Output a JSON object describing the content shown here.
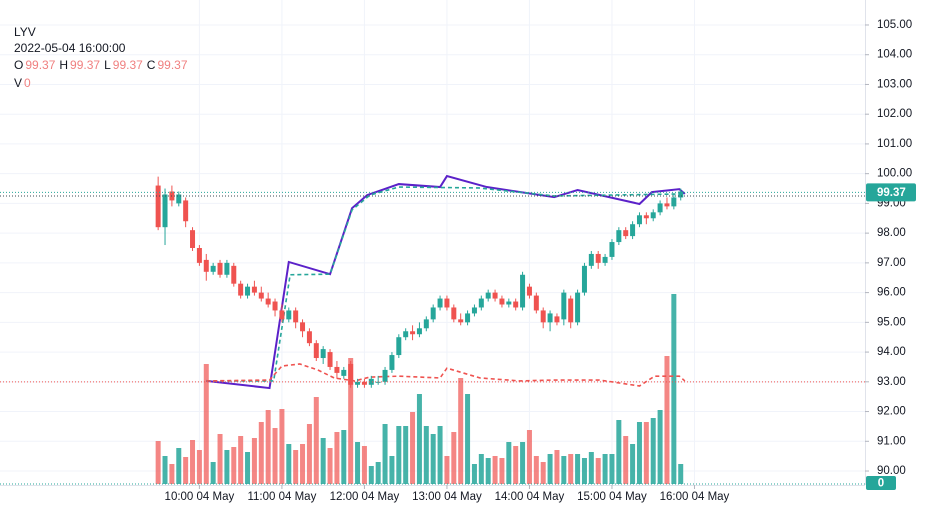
{
  "chart_data": {
    "type": "candlestick",
    "legend": {
      "symbol": "LYV",
      "datetime": "2022-05-04 16:00:00",
      "ohlc": [
        {
          "label": "O",
          "value": 99.37
        },
        {
          "label": "H",
          "value": 99.37
        },
        {
          "label": "L",
          "value": 99.37
        },
        {
          "label": "C",
          "value": 99.37
        }
      ],
      "volume": {
        "label": "V",
        "value": 0
      }
    },
    "xlim": [
      455,
      1084
    ],
    "xticks": [
      {
        "value": 600,
        "label": "10:00 04 May"
      },
      {
        "value": 660,
        "label": "11:00 04 May"
      },
      {
        "value": 720,
        "label": "12:00 04 May"
      },
      {
        "value": 780,
        "label": "13:00 04 May"
      },
      {
        "value": 840,
        "label": "14:00 04 May"
      },
      {
        "value": 900,
        "label": "15:00 04 May"
      },
      {
        "value": 960,
        "label": "16:00 04 May"
      }
    ],
    "ylim": [
      89.53,
      105.84
    ],
    "yticks": [
      {
        "value": 90,
        "label": "90.00"
      },
      {
        "value": 91,
        "label": "91.00"
      },
      {
        "value": 92,
        "label": "92.00"
      },
      {
        "value": 93,
        "label": "93.00"
      },
      {
        "value": 94,
        "label": "94.00"
      },
      {
        "value": 95,
        "label": "95.00"
      },
      {
        "value": 96,
        "label": "96.00"
      },
      {
        "value": 97,
        "label": "97.00"
      },
      {
        "value": 98,
        "label": "98.00"
      },
      {
        "value": 99,
        "label": "99.00"
      },
      {
        "value": 100,
        "label": "100.00"
      },
      {
        "value": 101,
        "label": "101.00"
      },
      {
        "value": 102,
        "label": "102.00"
      },
      {
        "value": 103,
        "label": "103.00"
      },
      {
        "value": 104,
        "label": "104.00"
      },
      {
        "value": 105,
        "label": "105.00"
      }
    ],
    "vlim": [
      0,
      200
    ],
    "grid": true,
    "up_color": "#26a69a",
    "down_color": "#ef5350",
    "last_price": 99.37,
    "last_volume": 0,
    "price_lines": [
      {
        "value": 99.37,
        "color": "#26a69a"
      },
      {
        "value": 99.25,
        "color": "#37474f"
      },
      {
        "value": 93.0,
        "color": "#ef5350"
      }
    ],
    "x": [
      570,
      575,
      580,
      585,
      590,
      595,
      600,
      605,
      610,
      615,
      620,
      625,
      630,
      635,
      640,
      645,
      650,
      655,
      660,
      665,
      670,
      675,
      680,
      685,
      690,
      695,
      700,
      705,
      710,
      715,
      720,
      725,
      730,
      735,
      740,
      745,
      750,
      755,
      760,
      765,
      770,
      775,
      780,
      785,
      790,
      795,
      800,
      805,
      810,
      815,
      820,
      825,
      830,
      835,
      840,
      845,
      850,
      855,
      860,
      865,
      870,
      875,
      880,
      885,
      890,
      895,
      900,
      905,
      910,
      915,
      920,
      925,
      930,
      935,
      940,
      945,
      950
    ],
    "open": [
      99.6,
      98.2,
      99.4,
      99.0,
      99.1,
      98.1,
      97.5,
      97.1,
      96.7,
      97.0,
      96.6,
      96.9,
      96.3,
      95.9,
      96.2,
      96.0,
      95.8,
      95.7,
      95.4,
      95.1,
      95.4,
      95.0,
      94.7,
      94.3,
      93.8,
      94.0,
      93.5,
      93.2,
      93.6,
      92.9,
      93.0,
      92.9,
      93.0,
      93.0,
      93.4,
      93.9,
      94.5,
      94.7,
      94.6,
      94.8,
      95.1,
      95.5,
      95.8,
      95.5,
      95.1,
      95.0,
      95.3,
      95.5,
      95.8,
      96.0,
      95.8,
      95.6,
      95.7,
      95.5,
      96.2,
      95.9,
      95.4,
      95.0,
      95.2,
      95.1,
      95.8,
      95.0,
      96.0,
      96.9,
      97.3,
      97.0,
      97.2,
      97.7,
      98.1,
      97.9,
      98.3,
      98.6,
      98.5,
      98.7,
      99.0,
      98.9,
      99.2
    ],
    "high": [
      99.9,
      99.5,
      99.6,
      99.4,
      99.2,
      98.2,
      97.6,
      97.3,
      97.0,
      97.1,
      97.1,
      97.0,
      96.4,
      96.3,
      96.4,
      96.2,
      96.0,
      95.8,
      95.6,
      95.5,
      95.5,
      95.1,
      94.8,
      94.4,
      94.2,
      94.1,
      93.7,
      93.5,
      93.7,
      93.1,
      93.1,
      93.2,
      93.2,
      93.5,
      94.0,
      94.6,
      94.8,
      94.9,
      95.0,
      95.2,
      95.6,
      95.9,
      95.9,
      95.6,
      95.3,
      95.4,
      95.6,
      95.9,
      96.1,
      96.1,
      95.9,
      95.8,
      95.8,
      96.7,
      96.3,
      96.0,
      95.5,
      95.4,
      95.3,
      96.1,
      95.9,
      96.1,
      97.0,
      97.4,
      97.4,
      97.3,
      97.8,
      98.2,
      98.2,
      98.4,
      98.7,
      98.7,
      98.8,
      99.1,
      99.2,
      99.3,
      99.5
    ],
    "low": [
      98.1,
      97.6,
      98.9,
      98.9,
      98.2,
      97.4,
      96.9,
      96.4,
      96.6,
      96.5,
      96.5,
      96.2,
      95.8,
      95.8,
      95.9,
      95.7,
      95.5,
      95.2,
      95.0,
      95.0,
      94.8,
      94.5,
      94.2,
      93.7,
      93.6,
      93.4,
      93.1,
      93.1,
      92.8,
      92.8,
      92.8,
      92.8,
      92.9,
      92.9,
      93.3,
      93.8,
      94.4,
      94.4,
      94.5,
      94.7,
      95.0,
      95.4,
      95.4,
      95.0,
      94.9,
      94.9,
      95.2,
      95.4,
      95.7,
      95.7,
      95.5,
      95.5,
      95.4,
      95.4,
      95.8,
      95.3,
      94.8,
      94.7,
      94.9,
      94.9,
      94.8,
      94.9,
      95.9,
      96.8,
      96.8,
      96.9,
      97.1,
      97.6,
      97.8,
      97.8,
      98.2,
      98.3,
      98.4,
      98.6,
      98.8,
      98.8,
      99.1
    ],
    "close": [
      98.2,
      99.3,
      99.1,
      99.3,
      98.4,
      97.5,
      97.0,
      96.7,
      96.9,
      96.6,
      97.0,
      96.3,
      95.9,
      96.2,
      96.0,
      95.8,
      95.6,
      95.4,
      95.1,
      95.4,
      95.0,
      94.7,
      94.3,
      93.8,
      94.1,
      93.5,
      93.3,
      93.4,
      92.9,
      93.0,
      92.9,
      93.1,
      93.0,
      93.4,
      93.9,
      94.5,
      94.7,
      94.6,
      94.8,
      95.1,
      95.5,
      95.8,
      95.5,
      95.1,
      95.0,
      95.3,
      95.5,
      95.8,
      96.0,
      95.8,
      95.6,
      95.7,
      95.5,
      96.6,
      95.9,
      95.4,
      95.0,
      95.3,
      95.0,
      96.0,
      95.0,
      96.0,
      96.9,
      97.3,
      97.0,
      97.2,
      97.7,
      98.1,
      97.9,
      98.3,
      98.6,
      98.5,
      98.7,
      99.0,
      98.9,
      99.2,
      99.4
    ],
    "volume": [
      43,
      28,
      20,
      36,
      27,
      44,
      34,
      120,
      22,
      50,
      34,
      37,
      48,
      32,
      46,
      62,
      74,
      56,
      75,
      40,
      34,
      40,
      60,
      87,
      46,
      36,
      52,
      54,
      126,
      42,
      38,
      18,
      22,
      60,
      28,
      58,
      58,
      72,
      90,
      58,
      50,
      58,
      28,
      52,
      106,
      90,
      20,
      30,
      26,
      28,
      26,
      42,
      38,
      42,
      54,
      28,
      22,
      30,
      34,
      28,
      30,
      30,
      26,
      32,
      26,
      30,
      30,
      64,
      48,
      40,
      62,
      62,
      66,
      74,
      128,
      190,
      20
    ],
    "series": [
      {
        "color": "#5b21c9",
        "dash": "solid",
        "x": [
          605,
          651,
          665,
          695,
          711,
          722,
          745,
          775,
          780,
          809,
          858,
          875,
          920,
          929,
          949,
          953
        ],
        "values": [
          93.03,
          92.79,
          97.03,
          96.62,
          98.84,
          99.28,
          99.65,
          99.55,
          99.92,
          99.55,
          99.21,
          99.45,
          98.98,
          99.38,
          99.48,
          99.32
        ]
      },
      {
        "color": "#26a69a",
        "dash": "dashed",
        "x": [
          605,
          654,
          666,
          695,
          711,
          724,
          745,
          803,
          858,
          953
        ],
        "values": [
          93.03,
          93.03,
          96.6,
          96.62,
          98.78,
          99.28,
          99.55,
          99.52,
          99.25,
          99.32
        ]
      },
      {
        "color": "#ef5350",
        "dash": "dashed",
        "x": [
          605,
          651,
          660,
          673,
          686,
          698,
          713,
          724,
          745,
          775,
          780,
          804,
          833,
          858,
          891,
          920,
          931,
          949,
          953
        ],
        "values": [
          93.03,
          93.06,
          93.53,
          93.6,
          93.4,
          93.13,
          93.03,
          93.16,
          93.19,
          93.13,
          93.46,
          93.13,
          93.03,
          93.06,
          93.06,
          92.86,
          93.19,
          93.19,
          93.03
        ]
      }
    ]
  }
}
